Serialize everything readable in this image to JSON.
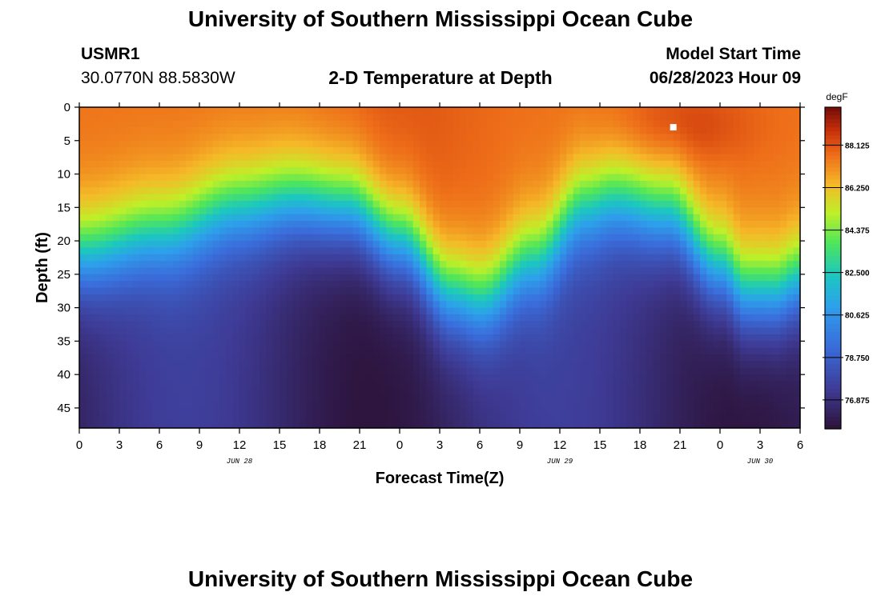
{
  "header": {
    "title": "University of Southern Mississippi Ocean Cube",
    "station": "USMR1",
    "coords": "30.0770N  88.5830W",
    "subtitle": "2-D Temperature at Depth",
    "model_label": "Model Start Time",
    "model_time": "06/28/2023 Hour 09"
  },
  "footer": {
    "title": "University of Southern Mississippi Ocean Cube"
  },
  "chart_data": {
    "type": "heatmap",
    "title": "2-D Temperature at Depth",
    "xlabel": "Forecast Time(Z)",
    "ylabel": "Depth (ft)",
    "x_ticks": [
      "0",
      "3",
      "6",
      "9",
      "12",
      "15",
      "18",
      "21",
      "0",
      "3",
      "6",
      "9",
      "12",
      "15",
      "18",
      "21",
      "0",
      "3",
      "6"
    ],
    "x_range": [
      0,
      54
    ],
    "date_labels": [
      {
        "text": "JUN 28",
        "x": 12
      },
      {
        "text": "JUN 29",
        "x": 36
      },
      {
        "text": "JUN 30",
        "x": 51
      }
    ],
    "y_ticks": [
      "0",
      "5",
      "10",
      "15",
      "20",
      "25",
      "30",
      "35",
      "40",
      "45"
    ],
    "y_range": [
      0,
      48
    ],
    "colorbar": {
      "unit": "degF",
      "labels": [
        "88.125",
        "86.250",
        "84.375",
        "82.500",
        "80.625",
        "78.750",
        "76.875"
      ],
      "range": [
        75.6,
        89.8
      ]
    },
    "thermocline_depth_ft": {
      "x": [
        0,
        6,
        12,
        16,
        20,
        24,
        28,
        30,
        34,
        38,
        40,
        44,
        48,
        50,
        52,
        54
      ],
      "depth": [
        22,
        19,
        15,
        14,
        15,
        20,
        28,
        29,
        23,
        15,
        14,
        16,
        24,
        28,
        28,
        26
      ]
    },
    "surface_max_near": {
      "x": 45,
      "depth": 3,
      "value": 89.5
    },
    "marker": {
      "x": 44.5,
      "depth": 3
    }
  }
}
